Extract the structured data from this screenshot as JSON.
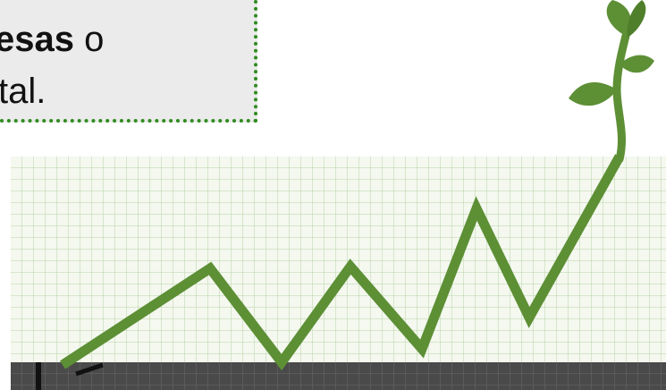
{
  "text_box": {
    "line1": {
      "bold": "esas",
      "rest": "o"
    },
    "line2": "tal."
  }
}
